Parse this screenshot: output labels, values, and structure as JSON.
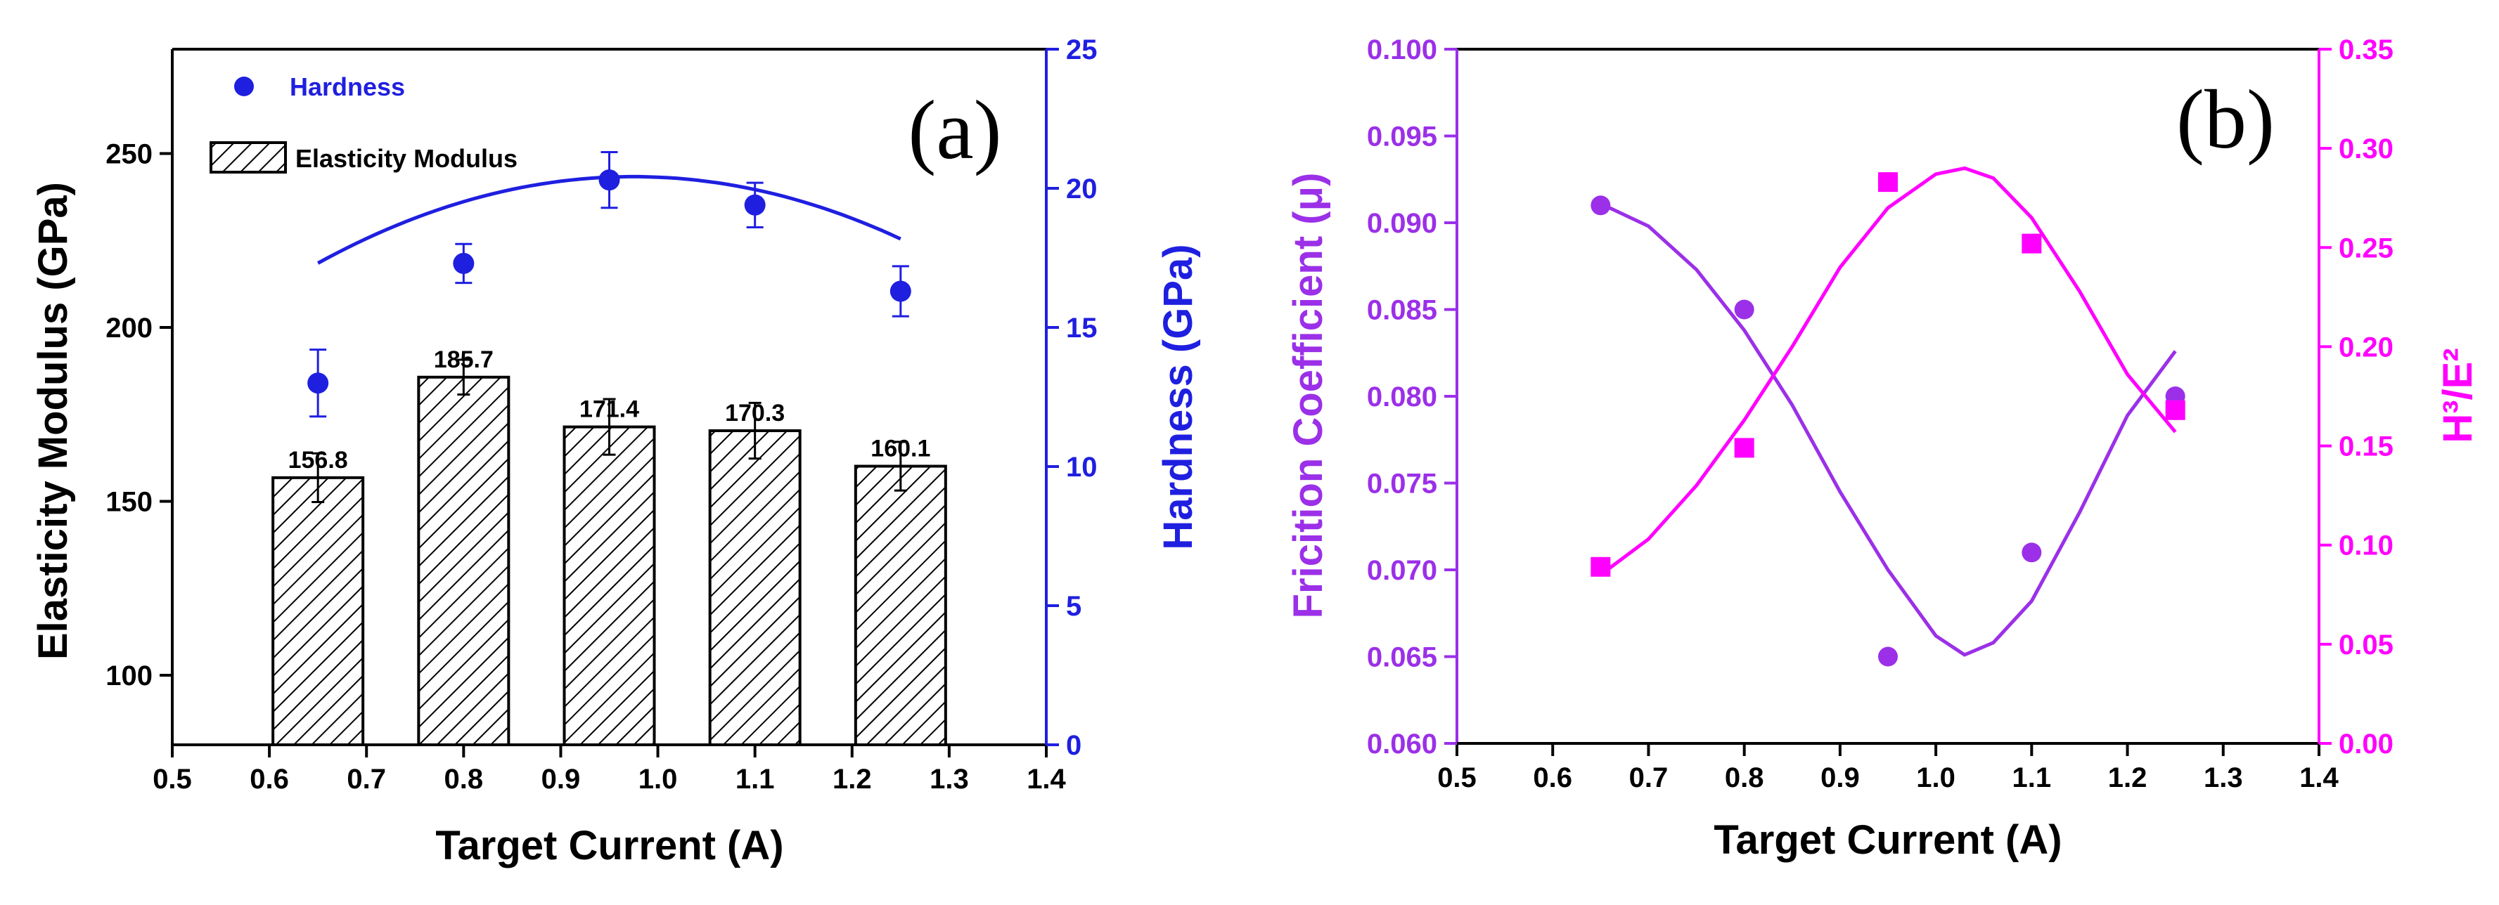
{
  "chart_data": [
    {
      "type": "bar+line",
      "panel_label": "(a)",
      "xlabel": "Target Current (A)",
      "ylabel": "Elasticity Modulus (GPa)",
      "y2label": "Hardness (GPa)",
      "xlim": [
        0.5,
        1.4
      ],
      "ylim": [
        80,
        280
      ],
      "y2lim": [
        0,
        25
      ],
      "xticks": [
        "0.5",
        "0.6",
        "0.7",
        "0.8",
        "0.9",
        "1.0",
        "1.1",
        "1.2",
        "1.3",
        "1.4"
      ],
      "yticks": [
        "100",
        "150",
        "200",
        "250"
      ],
      "y2ticks": [
        "0",
        "5",
        "10",
        "15",
        "20",
        "25"
      ],
      "legend": {
        "hardness": "Hardness",
        "modulus": "Elasticity Modulus"
      },
      "bars": {
        "name": "Elasticity Modulus",
        "x": [
          0.65,
          0.8,
          0.95,
          1.1,
          1.25
        ],
        "values": [
          156.8,
          185.7,
          171.4,
          170.3,
          160.1
        ],
        "labels": [
          "156.8",
          "185.7",
          "171.4",
          "170.3",
          "160.1"
        ],
        "errors": [
          7,
          5,
          8,
          8,
          7
        ]
      },
      "line": {
        "name": "Hardness",
        "x": [
          0.65,
          0.8,
          0.95,
          1.1,
          1.25
        ],
        "values": [
          13.0,
          17.3,
          20.3,
          19.4,
          16.3
        ],
        "errors": [
          1.2,
          0.7,
          1.0,
          0.8,
          0.9
        ],
        "color": "#1f1fe0"
      }
    },
    {
      "type": "scatter",
      "panel_label": "(b)",
      "xlabel": "Target Current (A)",
      "ylabel": "Fricition Coefficient (μ)",
      "y2label": "H³/E²",
      "xlim": [
        0.5,
        1.4
      ],
      "ylim": [
        0.06,
        0.1
      ],
      "y2lim": [
        0,
        0.35
      ],
      "xticks": [
        "0.5",
        "0.6",
        "0.7",
        "0.8",
        "0.9",
        "1.0",
        "1.1",
        "1.2",
        "1.3",
        "1.4"
      ],
      "yticks": [
        "0.060",
        "0.065",
        "0.070",
        "0.075",
        "0.080",
        "0.085",
        "0.090",
        "0.095",
        "0.100"
      ],
      "y2ticks": [
        "0.00",
        "0.05",
        "0.10",
        "0.15",
        "0.20",
        "0.25",
        "0.30",
        "0.35"
      ],
      "series": [
        {
          "name": "Friction Coefficient",
          "x": [
            0.65,
            0.8,
            0.95,
            1.1,
            1.25
          ],
          "values": [
            0.091,
            0.085,
            0.065,
            0.071,
            0.08
          ],
          "marker": "circle",
          "color": "#9b30e8",
          "fit": [
            [
              0.65,
              0.0911
            ],
            [
              0.7,
              0.0898
            ],
            [
              0.75,
              0.0873
            ],
            [
              0.8,
              0.0838
            ],
            [
              0.85,
              0.0795
            ],
            [
              0.9,
              0.0745
            ],
            [
              0.95,
              0.07
            ],
            [
              1.0,
              0.0662
            ],
            [
              1.03,
              0.0651
            ],
            [
              1.06,
              0.0658
            ],
            [
              1.1,
              0.0682
            ],
            [
              1.15,
              0.0733
            ],
            [
              1.2,
              0.0789
            ],
            [
              1.25,
              0.0826
            ]
          ]
        },
        {
          "name": "H3/E2",
          "x": [
            0.65,
            0.8,
            0.95,
            1.1,
            1.25
          ],
          "values": [
            0.089,
            0.149,
            0.283,
            0.252,
            0.168
          ],
          "marker": "square",
          "color": "#ff00ff",
          "fit": [
            [
              0.65,
              0.085
            ],
            [
              0.7,
              0.103
            ],
            [
              0.75,
              0.13
            ],
            [
              0.8,
              0.163
            ],
            [
              0.85,
              0.2
            ],
            [
              0.9,
              0.24
            ],
            [
              0.95,
              0.27
            ],
            [
              1.0,
              0.287
            ],
            [
              1.03,
              0.29
            ],
            [
              1.06,
              0.285
            ],
            [
              1.1,
              0.265
            ],
            [
              1.15,
              0.228
            ],
            [
              1.2,
              0.186
            ],
            [
              1.25,
              0.157
            ]
          ]
        }
      ]
    }
  ]
}
